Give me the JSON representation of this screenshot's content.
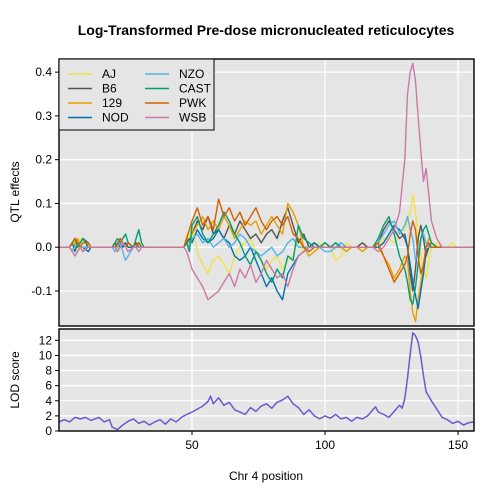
{
  "chart_data": {
    "type": "line",
    "title": "Log-Transformed Pre-dose micronucleated reticulocytes",
    "xlabel": "Chr 4 position",
    "xlim": [
      0,
      156
    ],
    "x_ticks": [
      50,
      100,
      150
    ],
    "grid": true,
    "legend_position": "top-left",
    "top_panel": {
      "ylabel": "QTL effects",
      "ylim": [
        -0.18,
        0.43
      ],
      "y_ticks": [
        -0.1,
        0.0,
        0.1,
        0.2,
        0.3,
        0.4
      ],
      "y_tick_labels": [
        "-0.1",
        "0.0",
        "0.1",
        "0.2",
        "0.3",
        "0.4"
      ],
      "x": [
        0,
        4,
        5,
        6,
        7,
        8,
        9,
        11,
        12,
        20,
        21,
        22,
        23,
        24,
        25,
        26,
        28,
        29,
        30,
        31,
        32,
        35,
        40,
        47,
        48,
        49,
        50,
        52,
        54,
        56,
        58,
        60,
        62,
        64,
        66,
        68,
        70,
        72,
        74,
        76,
        78,
        80,
        82,
        84,
        86,
        88,
        90,
        92,
        94,
        96,
        98,
        100,
        102,
        104,
        106,
        108,
        110,
        112,
        114,
        116,
        118,
        120,
        122,
        124,
        126,
        128,
        130,
        131,
        132,
        133,
        134,
        135,
        136,
        137,
        138,
        139,
        140,
        142,
        144,
        146,
        148,
        149,
        150,
        152,
        156
      ],
      "series": [
        {
          "name": "AJ",
          "color": "#f0e442",
          "values": [
            0,
            0,
            0.01,
            0.01,
            -0.01,
            0.02,
            0.01,
            0.01,
            0,
            0,
            0.01,
            -0.01,
            0.01,
            0,
            0.01,
            0,
            0,
            0.01,
            0.01,
            0,
            0,
            0,
            0,
            0,
            0.03,
            0.02,
            0.05,
            -0.01,
            -0.04,
            -0.06,
            -0.03,
            -0.02,
            -0.04,
            -0.06,
            -0.02,
            0,
            0.01,
            0.02,
            -0.01,
            -0.03,
            -0.05,
            -0.03,
            -0.02,
            -0.05,
            -0.03,
            -0.02,
            0.02,
            -0.01,
            0.01,
            0,
            0.01,
            0,
            0,
            -0.03,
            -0.02,
            0.01,
            0,
            0,
            0.01,
            0,
            0,
            0,
            0.02,
            0.02,
            0.01,
            0.03,
            0.04,
            0.06,
            0.08,
            0.12,
            0.08,
            0.02,
            -0.02,
            -0.05,
            -0.07,
            -0.03,
            0,
            0.01,
            0,
            0,
            0.01,
            0,
            0,
            0,
            0
          ]
        },
        {
          "name": "B6",
          "color": "#555555",
          "values": [
            0,
            0,
            0.01,
            0.02,
            0,
            0.01,
            0.02,
            0.01,
            0,
            0,
            0.01,
            0,
            0.01,
            0,
            0.01,
            0,
            0,
            0.01,
            0,
            0,
            0,
            0,
            0,
            0,
            0.02,
            0.01,
            0.03,
            0.06,
            0.04,
            0.07,
            0.03,
            0.04,
            0.02,
            0.05,
            0.03,
            0.06,
            0.04,
            0.02,
            0.03,
            0.01,
            0.03,
            0.04,
            0.02,
            0.06,
            0.09,
            0.05,
            0.01,
            0.03,
            0,
            0.01,
            0,
            0.01,
            0,
            0,
            0.01,
            0,
            0,
            0,
            0.01,
            0,
            0,
            0.01,
            0.04,
            0.06,
            0.04,
            0.02,
            0.03,
            0,
            -0.06,
            -0.1,
            -0.05,
            0.02,
            0.05,
            0.02,
            -0.02,
            0,
            0.01,
            0,
            0,
            0,
            0,
            0,
            0,
            0,
            0
          ]
        },
        {
          "name": "129",
          "color": "#e69f00",
          "values": [
            0,
            0,
            -0.01,
            0.01,
            0.02,
            0,
            -0.01,
            0.01,
            0,
            0,
            0,
            0.01,
            0,
            0.01,
            0,
            0.01,
            0,
            0,
            0.01,
            0,
            0,
            0,
            0,
            0,
            0.02,
            0.01,
            0.03,
            0.05,
            0.07,
            0.04,
            0.06,
            0.04,
            0.07,
            0.05,
            0.02,
            0.04,
            0.06,
            0.05,
            0.06,
            0.03,
            0.05,
            0.07,
            0.05,
            0.03,
            0.1,
            0.08,
            0.05,
            0,
            -0.02,
            -0.01,
            0,
            0,
            0,
            0.01,
            0,
            -0.01,
            0,
            0,
            -0.01,
            0,
            0,
            0,
            -0.02,
            -0.04,
            -0.07,
            -0.05,
            -0.02,
            -0.03,
            -0.1,
            -0.15,
            -0.17,
            -0.12,
            -0.08,
            -0.04,
            0,
            0.02,
            0.01,
            0,
            0,
            0,
            0,
            0,
            0,
            0,
            0
          ]
        },
        {
          "name": "NOD",
          "color": "#0072b2",
          "values": [
            0,
            0,
            0.01,
            -0.01,
            0.01,
            0,
            0,
            -0.01,
            0,
            0,
            0,
            0.01,
            0,
            0,
            0.01,
            0,
            0,
            0,
            0.01,
            0,
            0,
            0,
            0,
            0,
            0.01,
            0.02,
            0.01,
            0.04,
            0.02,
            0.01,
            0.02,
            0.04,
            0.02,
            0.01,
            -0.02,
            -0.03,
            -0.02,
            0,
            -0.03,
            -0.06,
            -0.09,
            -0.07,
            -0.1,
            -0.12,
            -0.06,
            -0.04,
            -0.02,
            -0.01,
            0,
            0.01,
            0,
            0,
            0,
            0,
            0,
            0,
            0,
            0,
            0,
            0,
            0,
            0,
            0.01,
            0.03,
            0.05,
            0.04,
            0.02,
            0,
            -0.04,
            -0.08,
            -0.11,
            -0.14,
            -0.1,
            -0.06,
            -0.01,
            0,
            0,
            0,
            0,
            0,
            0,
            0,
            0,
            0,
            0
          ]
        },
        {
          "name": "NZO",
          "color": "#56b4e9",
          "values": [
            0,
            0,
            -0.01,
            0,
            0.01,
            0,
            0,
            0,
            0,
            0,
            -0.01,
            0,
            0.01,
            -0.01,
            -0.03,
            -0.02,
            0,
            0,
            0,
            0,
            0,
            0,
            0,
            0,
            0.01,
            0,
            0.02,
            0.03,
            0.01,
            0.02,
            0,
            0.01,
            0.02,
            0,
            0.01,
            0.03,
            0.02,
            0,
            -0.01,
            -0.02,
            -0.01,
            0,
            -0.02,
            -0.01,
            0.01,
            0.02,
            0,
            0,
            0,
            0,
            0,
            -0.01,
            -0.01,
            0,
            0.01,
            0,
            0,
            0,
            0,
            0,
            0,
            0.01,
            0.03,
            0.05,
            0.06,
            0.03,
            0.05,
            0.07,
            0.04,
            0.02,
            -0.03,
            -0.01,
            0.02,
            0.03,
            0.01,
            0,
            0,
            0,
            0,
            0,
            0,
            0,
            0,
            0,
            0
          ]
        },
        {
          "name": "CAST",
          "color": "#009e73",
          "values": [
            0,
            0,
            0.01,
            0.02,
            0,
            0.01,
            0.02,
            0,
            0,
            0,
            0.01,
            0.02,
            0.01,
            0.02,
            0.03,
            0.01,
            0,
            0.02,
            0.04,
            0.01,
            0,
            0,
            0,
            0,
            0.01,
            -0.01,
            0.05,
            0.07,
            0.03,
            0.01,
            0.03,
            0.05,
            0.08,
            0.06,
            0.03,
            0.01,
            -0.02,
            -0.04,
            -0.01,
            -0.03,
            -0.06,
            -0.08,
            -0.05,
            -0.07,
            -0.02,
            -0.03,
            0.05,
            0.02,
            0.01,
            0,
            0,
            0.01,
            0,
            0.01,
            0,
            0,
            0,
            0,
            0,
            0,
            0,
            0.02,
            0.05,
            0.07,
            0.03,
            -0.02,
            -0.05,
            -0.08,
            -0.12,
            -0.13,
            -0.09,
            -0.04,
            0.02,
            0.04,
            0.05,
            0.03,
            0.01,
            0,
            0,
            0,
            0,
            0,
            0,
            0,
            0
          ]
        },
        {
          "name": "PWK",
          "color": "#d55e00",
          "values": [
            0,
            0,
            0.01,
            0.02,
            0.01,
            0,
            0.01,
            0.01,
            0,
            0,
            0,
            0.01,
            0.02,
            0.01,
            0,
            0.01,
            0,
            0,
            0.01,
            0,
            0,
            0,
            0,
            0,
            0.02,
            0.04,
            0.06,
            0.09,
            0.05,
            0.07,
            0.04,
            0.11,
            0.07,
            0.09,
            0.06,
            0.08,
            0.05,
            0.07,
            0.09,
            0.06,
            0.04,
            0.06,
            0.07,
            0.05,
            0.07,
            0.03,
            0.02,
            0,
            -0.01,
            0,
            0,
            0,
            0,
            0,
            0,
            0,
            0,
            0,
            0,
            0,
            0,
            0.01,
            -0.02,
            -0.05,
            -0.08,
            -0.06,
            -0.04,
            -0.02,
            0.03,
            0.06,
            0.04,
            -0.02,
            -0.06,
            -0.04,
            0,
            0.01,
            0,
            0,
            0,
            0,
            0,
            0,
            0,
            0,
            0
          ]
        },
        {
          "name": "WSB",
          "color": "#cc79a7",
          "values": [
            0,
            0,
            -0.01,
            -0.02,
            -0.01,
            0,
            -0.01,
            0,
            0,
            0,
            0,
            -0.01,
            0,
            0.01,
            0,
            -0.01,
            0,
            0,
            -0.01,
            0,
            0,
            0,
            0,
            0,
            -0.01,
            -0.03,
            -0.05,
            -0.07,
            -0.09,
            -0.12,
            -0.11,
            -0.1,
            -0.08,
            -0.06,
            -0.09,
            -0.05,
            -0.07,
            -0.04,
            -0.08,
            -0.06,
            -0.03,
            -0.05,
            -0.07,
            -0.06,
            -0.09,
            -0.05,
            -0.02,
            -0.01,
            0,
            0,
            0,
            0,
            0,
            0,
            0,
            0,
            0,
            0,
            0,
            0,
            0,
            -0.01,
            0,
            0.02,
            0.04,
            0.08,
            0.2,
            0.35,
            0.4,
            0.42,
            0.38,
            0.3,
            0.22,
            0.15,
            0.18,
            0.12,
            0.06,
            0.02,
            0,
            0,
            0,
            0,
            0,
            0,
            0
          ]
        }
      ]
    },
    "bottom_panel": {
      "ylabel": "LOD score",
      "ylim": [
        0,
        13.5
      ],
      "y_ticks": [
        0,
        2,
        4,
        6,
        8,
        10,
        12
      ],
      "color": "#6a5acd",
      "x": [
        0,
        2,
        4,
        6,
        8,
        10,
        12,
        15,
        17,
        19,
        20,
        22,
        24,
        26,
        28,
        30,
        32,
        34,
        36,
        38,
        40,
        42,
        44,
        46,
        48,
        50,
        52,
        54,
        56,
        57,
        58,
        60,
        62,
        64,
        66,
        68,
        70,
        72,
        74,
        76,
        78,
        80,
        82,
        84,
        86,
        88,
        90,
        92,
        94,
        96,
        98,
        100,
        102,
        104,
        106,
        108,
        110,
        112,
        114,
        116,
        118,
        119,
        120,
        122,
        124,
        126,
        128,
        129,
        130,
        131,
        132,
        133,
        134,
        135,
        136,
        137,
        138,
        140,
        142,
        144,
        146,
        148,
        150,
        152,
        154,
        156
      ],
      "values": [
        1.2,
        1.5,
        1.2,
        1.8,
        1.6,
        1.8,
        1.4,
        1.8,
        1.2,
        1.5,
        0.5,
        0.2,
        0.8,
        1.3,
        1.6,
        1.0,
        1.3,
        0.8,
        1.2,
        1.5,
        0.9,
        1.6,
        1.2,
        1.8,
        2.2,
        2.5,
        2.9,
        3.3,
        3.9,
        4.6,
        3.6,
        4.4,
        3.4,
        3.8,
        2.8,
        2.5,
        2.2,
        3.1,
        2.6,
        3.3,
        3.6,
        3.0,
        3.8,
        4.1,
        4.6,
        3.6,
        3.1,
        2.2,
        2.8,
        2.0,
        1.6,
        2.0,
        1.7,
        2.2,
        1.6,
        1.8,
        1.3,
        1.8,
        1.6,
        2.0,
        2.8,
        3.2,
        2.5,
        2.2,
        1.8,
        2.6,
        3.4,
        3.0,
        4.3,
        7.0,
        10.2,
        13.0,
        12.6,
        11.8,
        9.8,
        7.3,
        5.2,
        4.0,
        2.9,
        1.8,
        1.5,
        1.0,
        1.3,
        0.8,
        1.1,
        1.2
      ]
    }
  }
}
